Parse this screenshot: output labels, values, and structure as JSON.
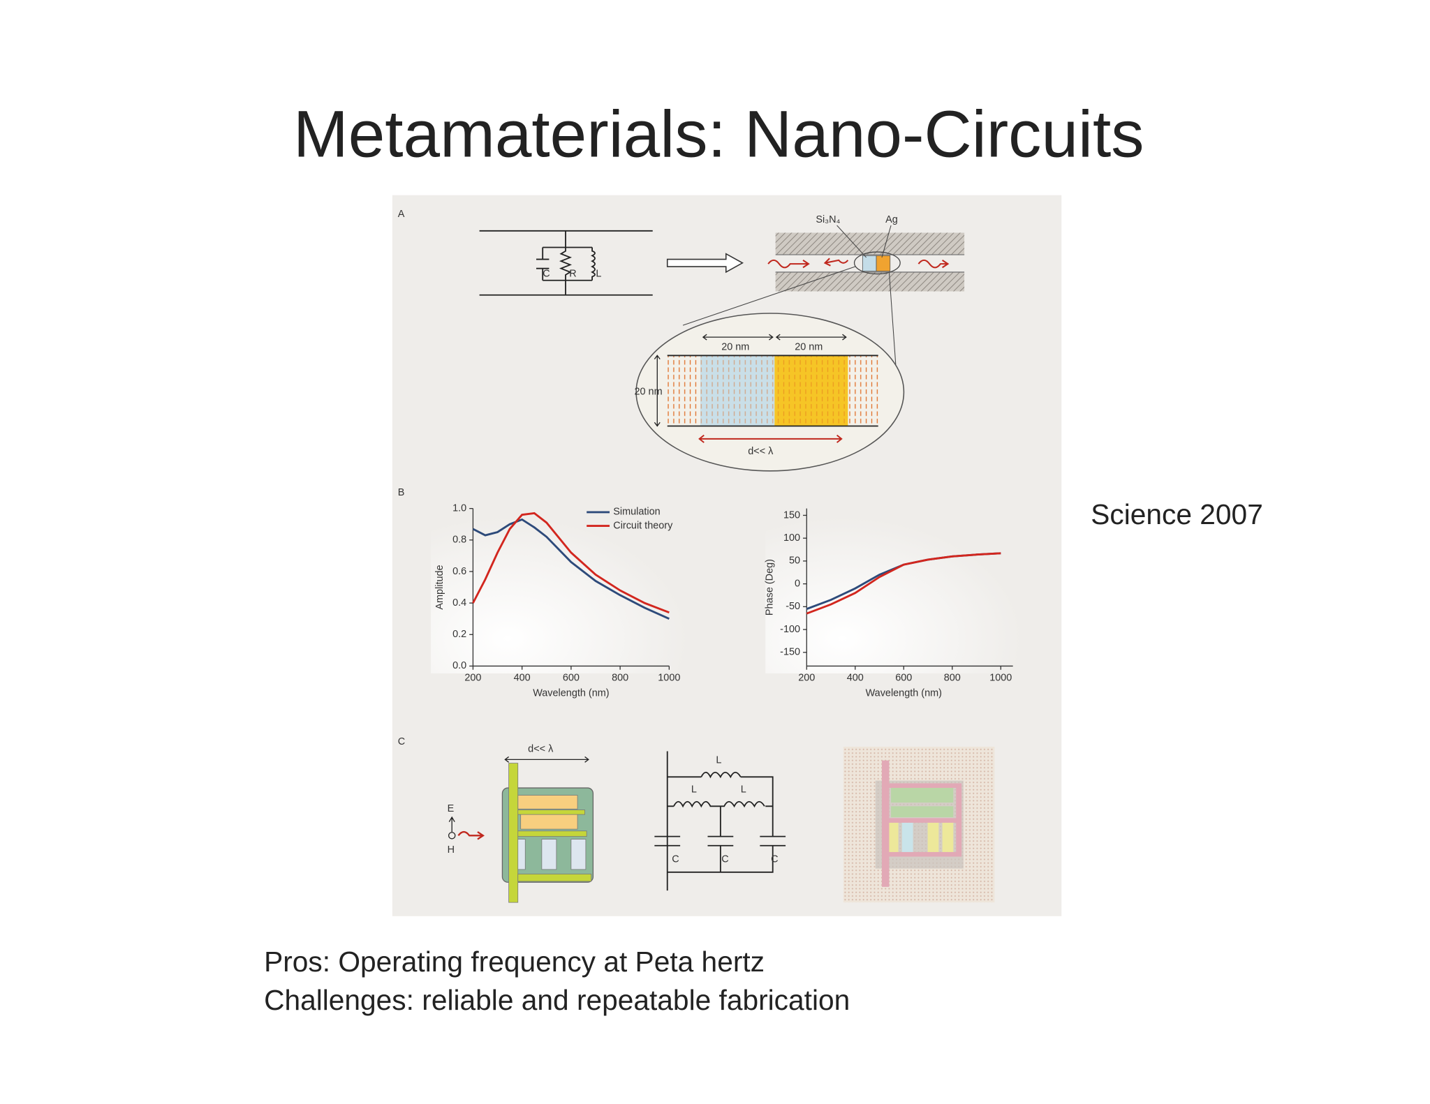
{
  "slide": {
    "title": "Metamaterials: Nano-Circuits",
    "source": "Science 2007",
    "notes": [
      "Pros: Operating frequency at Peta hertz",
      "Challenges: reliable and repeatable fabrication"
    ]
  },
  "figure": {
    "panel_a": "A",
    "panel_b": "B",
    "panel_c": "C",
    "a_circuit_labels": [
      "C",
      "R",
      "L"
    ],
    "a_materials": [
      "Si₃N₄",
      "Ag"
    ],
    "a_dims": [
      "20 nm",
      "20 nm",
      "20 nm"
    ],
    "a_d": "d<< λ",
    "c_d": "d<< λ",
    "c_fields": [
      "E",
      "H"
    ],
    "c_inductors": [
      "L",
      "L",
      "L"
    ],
    "c_capacitors": [
      "C",
      "C",
      "C"
    ]
  },
  "chart_data": [
    {
      "type": "line",
      "xlabel": "Wavelength (nm)",
      "ylabel": "Amplitude",
      "x": [
        200,
        250,
        300,
        350,
        400,
        450,
        500,
        600,
        700,
        800,
        900,
        1000
      ],
      "series": [
        {
          "name": "Simulation",
          "color": "#2d4a7a",
          "values": [
            0.87,
            0.83,
            0.85,
            0.9,
            0.93,
            0.88,
            0.82,
            0.66,
            0.54,
            0.45,
            0.37,
            0.3
          ]
        },
        {
          "name": "Circuit theory",
          "color": "#d2261e",
          "values": [
            0.4,
            0.55,
            0.72,
            0.87,
            0.96,
            0.97,
            0.91,
            0.72,
            0.58,
            0.48,
            0.4,
            0.34
          ]
        }
      ],
      "xlim": [
        200,
        1000
      ],
      "ylim": [
        0,
        1.0
      ],
      "xticks": [
        200,
        400,
        600,
        800,
        1000
      ],
      "yticks": [
        {
          "value": 0,
          "label": "0.0"
        },
        0.2,
        0.4,
        0.6,
        0.8,
        {
          "value": 1,
          "label": "1.0"
        }
      ],
      "legend": "top-right"
    },
    {
      "type": "line",
      "xlabel": "Wavelength (nm)",
      "ylabel": "Phase (Deg)",
      "x": [
        200,
        300,
        400,
        500,
        600,
        700,
        800,
        900,
        1000
      ],
      "series": [
        {
          "name": "Simulation",
          "color": "#2d4a7a",
          "values": [
            -55,
            -35,
            -10,
            20,
            42,
            53,
            60,
            64,
            67
          ]
        },
        {
          "name": "Circuit theory",
          "color": "#d2261e",
          "values": [
            -65,
            -45,
            -20,
            15,
            42,
            53,
            60,
            64,
            67
          ]
        }
      ],
      "xlim": [
        200,
        1050
      ],
      "ylim": [
        -180,
        165
      ],
      "xticks": [
        200,
        400,
        600,
        800,
        1000
      ],
      "yticks": [
        -150,
        -100,
        -50,
        0,
        50,
        100,
        150
      ]
    }
  ]
}
